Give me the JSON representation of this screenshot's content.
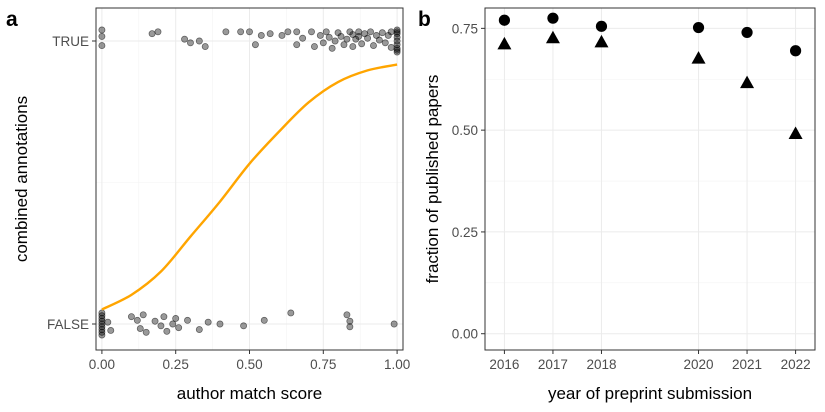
{
  "chart_data": [
    {
      "panel_label": "a",
      "type": "scatter",
      "xlabel": "author match score",
      "ylabel": "combined annotations",
      "xlim": [
        -0.02,
        1.02
      ],
      "x_ticks": [
        0.0,
        0.25,
        0.5,
        0.75,
        1.0
      ],
      "x_tick_labels": [
        "0.00",
        "0.25",
        "0.50",
        "0.75",
        "1.00"
      ],
      "y_categories": [
        "FALSE",
        "TRUE"
      ],
      "grid": true,
      "point_color": "#000000",
      "point_alpha": 0.4,
      "curve_color": "#FFA500",
      "points": [
        {
          "x": 0.0,
          "y": "TRUE",
          "j": 0.12
        },
        {
          "x": 0.0,
          "y": "TRUE",
          "j": -0.05
        },
        {
          "x": 0.0,
          "y": "TRUE",
          "j": 0.05
        },
        {
          "x": 0.17,
          "y": "TRUE",
          "j": 0.08
        },
        {
          "x": 0.19,
          "y": "TRUE",
          "j": 0.1
        },
        {
          "x": 0.28,
          "y": "TRUE",
          "j": 0.02
        },
        {
          "x": 0.3,
          "y": "TRUE",
          "j": -0.02
        },
        {
          "x": 0.33,
          "y": "TRUE",
          "j": 0.0
        },
        {
          "x": 0.35,
          "y": "TRUE",
          "j": -0.06
        },
        {
          "x": 0.42,
          "y": "TRUE",
          "j": 0.1
        },
        {
          "x": 0.47,
          "y": "TRUE",
          "j": 0.1
        },
        {
          "x": 0.5,
          "y": "TRUE",
          "j": 0.1
        },
        {
          "x": 0.52,
          "y": "TRUE",
          "j": -0.04
        },
        {
          "x": 0.54,
          "y": "TRUE",
          "j": 0.06
        },
        {
          "x": 0.57,
          "y": "TRUE",
          "j": 0.08
        },
        {
          "x": 0.61,
          "y": "TRUE",
          "j": 0.06
        },
        {
          "x": 0.63,
          "y": "TRUE",
          "j": 0.1
        },
        {
          "x": 0.66,
          "y": "TRUE",
          "j": 0.1
        },
        {
          "x": 0.66,
          "y": "TRUE",
          "j": -0.04
        },
        {
          "x": 0.68,
          "y": "TRUE",
          "j": 0.03
        },
        {
          "x": 0.71,
          "y": "TRUE",
          "j": 0.1
        },
        {
          "x": 0.72,
          "y": "TRUE",
          "j": -0.06
        },
        {
          "x": 0.74,
          "y": "TRUE",
          "j": 0.06
        },
        {
          "x": 0.75,
          "y": "TRUE",
          "j": -0.02
        },
        {
          "x": 0.76,
          "y": "TRUE",
          "j": 0.1
        },
        {
          "x": 0.77,
          "y": "TRUE",
          "j": 0.04
        },
        {
          "x": 0.78,
          "y": "TRUE",
          "j": -0.08
        },
        {
          "x": 0.79,
          "y": "TRUE",
          "j": 0.0
        },
        {
          "x": 0.8,
          "y": "TRUE",
          "j": 0.09
        },
        {
          "x": 0.81,
          "y": "TRUE",
          "j": 0.05
        },
        {
          "x": 0.82,
          "y": "TRUE",
          "j": -0.04
        },
        {
          "x": 0.83,
          "y": "TRUE",
          "j": 0.02
        },
        {
          "x": 0.84,
          "y": "TRUE",
          "j": 0.1
        },
        {
          "x": 0.85,
          "y": "TRUE",
          "j": 0.07
        },
        {
          "x": 0.85,
          "y": "TRUE",
          "j": -0.06
        },
        {
          "x": 0.86,
          "y": "TRUE",
          "j": 0.02
        },
        {
          "x": 0.87,
          "y": "TRUE",
          "j": 0.1
        },
        {
          "x": 0.87,
          "y": "TRUE",
          "j": 0.05
        },
        {
          "x": 0.88,
          "y": "TRUE",
          "j": -0.03
        },
        {
          "x": 0.89,
          "y": "TRUE",
          "j": 0.08
        },
        {
          "x": 0.9,
          "y": "TRUE",
          "j": 0.03
        },
        {
          "x": 0.91,
          "y": "TRUE",
          "j": 0.1
        },
        {
          "x": 0.92,
          "y": "TRUE",
          "j": -0.05
        },
        {
          "x": 0.93,
          "y": "TRUE",
          "j": 0.06
        },
        {
          "x": 0.94,
          "y": "TRUE",
          "j": 0.01
        },
        {
          "x": 0.95,
          "y": "TRUE",
          "j": 0.09
        },
        {
          "x": 0.96,
          "y": "TRUE",
          "j": -0.02
        },
        {
          "x": 0.97,
          "y": "TRUE",
          "j": 0.06
        },
        {
          "x": 0.98,
          "y": "TRUE",
          "j": 0.1
        },
        {
          "x": 0.98,
          "y": "TRUE",
          "j": -0.07
        },
        {
          "x": 1.0,
          "y": "TRUE",
          "j": 0.12
        },
        {
          "x": 1.0,
          "y": "TRUE",
          "j": 0.08
        },
        {
          "x": 1.0,
          "y": "TRUE",
          "j": 0.04
        },
        {
          "x": 1.0,
          "y": "TRUE",
          "j": 0.0
        },
        {
          "x": 1.0,
          "y": "TRUE",
          "j": -0.04
        },
        {
          "x": 1.0,
          "y": "TRUE",
          "j": -0.08
        },
        {
          "x": 1.0,
          "y": "TRUE",
          "j": -0.12
        },
        {
          "x": 1.0,
          "y": "TRUE",
          "j": 0.1
        },
        {
          "x": 1.0,
          "y": "TRUE",
          "j": -0.1
        },
        {
          "x": 0.0,
          "y": "FALSE",
          "j": 0.12
        },
        {
          "x": 0.0,
          "y": "FALSE",
          "j": 0.09
        },
        {
          "x": 0.0,
          "y": "FALSE",
          "j": 0.06
        },
        {
          "x": 0.0,
          "y": "FALSE",
          "j": 0.03
        },
        {
          "x": 0.0,
          "y": "FALSE",
          "j": 0.0
        },
        {
          "x": 0.0,
          "y": "FALSE",
          "j": -0.03
        },
        {
          "x": 0.0,
          "y": "FALSE",
          "j": -0.06
        },
        {
          "x": 0.0,
          "y": "FALSE",
          "j": -0.09
        },
        {
          "x": 0.0,
          "y": "FALSE",
          "j": -0.12
        },
        {
          "x": 0.02,
          "y": "FALSE",
          "j": 0.02
        },
        {
          "x": 0.03,
          "y": "FALSE",
          "j": -0.07
        },
        {
          "x": 0.1,
          "y": "FALSE",
          "j": 0.08
        },
        {
          "x": 0.12,
          "y": "FALSE",
          "j": 0.04
        },
        {
          "x": 0.13,
          "y": "FALSE",
          "j": -0.05
        },
        {
          "x": 0.14,
          "y": "FALSE",
          "j": 0.1
        },
        {
          "x": 0.15,
          "y": "FALSE",
          "j": -0.09
        },
        {
          "x": 0.18,
          "y": "FALSE",
          "j": 0.03
        },
        {
          "x": 0.2,
          "y": "FALSE",
          "j": -0.02
        },
        {
          "x": 0.21,
          "y": "FALSE",
          "j": 0.08
        },
        {
          "x": 0.22,
          "y": "FALSE",
          "j": -0.08
        },
        {
          "x": 0.24,
          "y": "FALSE",
          "j": 0.0
        },
        {
          "x": 0.25,
          "y": "FALSE",
          "j": 0.06
        },
        {
          "x": 0.26,
          "y": "FALSE",
          "j": -0.04
        },
        {
          "x": 0.29,
          "y": "FALSE",
          "j": 0.04
        },
        {
          "x": 0.33,
          "y": "FALSE",
          "j": -0.06
        },
        {
          "x": 0.36,
          "y": "FALSE",
          "j": 0.02
        },
        {
          "x": 0.4,
          "y": "FALSE",
          "j": 0.0
        },
        {
          "x": 0.48,
          "y": "FALSE",
          "j": -0.02
        },
        {
          "x": 0.55,
          "y": "FALSE",
          "j": 0.04
        },
        {
          "x": 0.64,
          "y": "FALSE",
          "j": 0.12
        },
        {
          "x": 0.83,
          "y": "FALSE",
          "j": 0.1
        },
        {
          "x": 0.84,
          "y": "FALSE",
          "j": 0.03
        },
        {
          "x": 0.84,
          "y": "FALSE",
          "j": -0.03
        },
        {
          "x": 0.99,
          "y": "FALSE",
          "j": 0.0
        }
      ],
      "curve": {
        "x": [
          0.0,
          0.1,
          0.2,
          0.3,
          0.4,
          0.5,
          0.6,
          0.7,
          0.8,
          0.9,
          1.0
        ],
        "p": [
          0.05,
          0.1,
          0.18,
          0.3,
          0.42,
          0.55,
          0.66,
          0.76,
          0.83,
          0.87,
          0.89
        ]
      }
    },
    {
      "panel_label": "b",
      "type": "scatter",
      "xlabel": "year of preprint submission",
      "ylabel": "fraction of published papers",
      "x_ticks": [
        2016,
        2017,
        2018,
        2020,
        2021,
        2022
      ],
      "xlim": [
        2015.6,
        2022.4
      ],
      "ylim": [
        -0.04,
        0.8
      ],
      "y_ticks": [
        0.0,
        0.25,
        0.5,
        0.75
      ],
      "y_tick_labels": [
        "0.00",
        "0.25",
        "0.50",
        "0.75"
      ],
      "grid": true,
      "series": [
        {
          "marker": "circle",
          "x": [
            2016,
            2017,
            2018,
            2020,
            2021,
            2022
          ],
          "values": [
            0.77,
            0.775,
            0.755,
            0.752,
            0.74,
            0.695
          ]
        },
        {
          "marker": "triangle",
          "x": [
            2016,
            2017,
            2018,
            2020,
            2021,
            2022
          ],
          "values": [
            0.71,
            0.725,
            0.715,
            0.675,
            0.615,
            0.49
          ]
        }
      ]
    }
  ]
}
